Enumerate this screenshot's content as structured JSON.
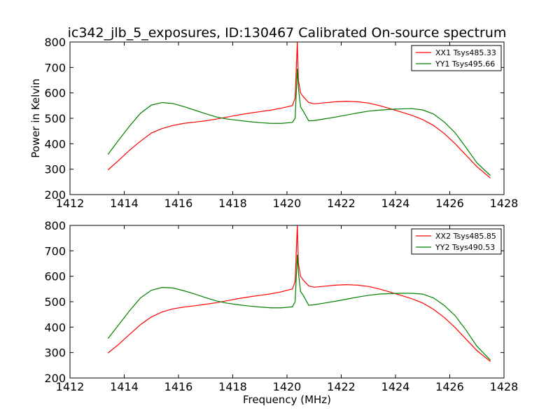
{
  "title": "ic342_jlb_5_exposures, ID:130467 Calibrated On-source spectrum",
  "chart_data": [
    {
      "type": "line",
      "xlabel": "",
      "ylabel": "Power in Kelvin",
      "xlim": [
        1412,
        1428
      ],
      "ylim": [
        200,
        800
      ],
      "xticks": [
        "1412",
        "1414",
        "1416",
        "1418",
        "1420",
        "1422",
        "1424",
        "1426",
        "1428"
      ],
      "yticks": [
        "200",
        "300",
        "400",
        "500",
        "600",
        "700",
        "800"
      ],
      "legend_position": "top-right",
      "series": [
        {
          "name": "XX1 Tsys485.33",
          "color": "#ff0000",
          "x": [
            1413.4,
            1413.8,
            1414.2,
            1414.6,
            1415.0,
            1415.4,
            1415.8,
            1416.2,
            1416.6,
            1417.0,
            1417.4,
            1417.8,
            1418.2,
            1418.6,
            1419.0,
            1419.4,
            1419.8,
            1420.0,
            1420.2,
            1420.3,
            1420.38,
            1420.42,
            1420.5,
            1420.6,
            1420.8,
            1421.0,
            1421.4,
            1421.8,
            1422.2,
            1422.6,
            1423.0,
            1423.4,
            1423.8,
            1424.2,
            1424.6,
            1425.0,
            1425.4,
            1425.8,
            1426.2,
            1426.6,
            1427.0,
            1427.5
          ],
          "y": [
            297,
            335,
            375,
            410,
            442,
            460,
            472,
            480,
            485,
            490,
            497,
            505,
            513,
            520,
            526,
            532,
            540,
            545,
            550,
            580,
            800,
            650,
            600,
            585,
            562,
            557,
            561,
            565,
            567,
            565,
            560,
            550,
            538,
            525,
            512,
            495,
            472,
            440,
            400,
            355,
            310,
            265
          ]
        },
        {
          "name": "YY1 Tsys495.66",
          "color": "#008000",
          "x": [
            1413.4,
            1413.8,
            1414.2,
            1414.6,
            1415.0,
            1415.4,
            1415.8,
            1416.2,
            1416.6,
            1417.0,
            1417.4,
            1417.8,
            1418.2,
            1418.6,
            1419.0,
            1419.4,
            1419.8,
            1420.0,
            1420.2,
            1420.3,
            1420.38,
            1420.42,
            1420.5,
            1420.6,
            1420.8,
            1421.0,
            1421.4,
            1421.8,
            1422.2,
            1422.6,
            1423.0,
            1423.4,
            1423.8,
            1424.2,
            1424.6,
            1425.0,
            1425.4,
            1425.8,
            1426.2,
            1426.6,
            1427.0,
            1427.5
          ],
          "y": [
            358,
            415,
            470,
            520,
            552,
            562,
            558,
            546,
            532,
            518,
            505,
            497,
            492,
            487,
            483,
            480,
            480,
            482,
            484,
            500,
            695,
            620,
            545,
            528,
            490,
            491,
            498,
            505,
            513,
            521,
            528,
            532,
            535,
            537,
            538,
            533,
            517,
            485,
            443,
            385,
            325,
            275
          ]
        }
      ]
    },
    {
      "type": "line",
      "xlabel": "Frequency (MHz)",
      "ylabel": "",
      "xlim": [
        1412,
        1428
      ],
      "ylim": [
        200,
        800
      ],
      "xticks": [
        "1412",
        "1414",
        "1416",
        "1418",
        "1420",
        "1422",
        "1424",
        "1426",
        "1428"
      ],
      "yticks": [
        "200",
        "300",
        "400",
        "500",
        "600",
        "700",
        "800"
      ],
      "legend_position": "top-right",
      "series": [
        {
          "name": "XX2 Tsys485.85",
          "color": "#ff0000",
          "x": [
            1413.4,
            1413.8,
            1414.2,
            1414.6,
            1415.0,
            1415.4,
            1415.8,
            1416.2,
            1416.6,
            1417.0,
            1417.4,
            1417.8,
            1418.2,
            1418.6,
            1419.0,
            1419.4,
            1419.8,
            1420.0,
            1420.2,
            1420.3,
            1420.38,
            1420.42,
            1420.5,
            1420.6,
            1420.8,
            1421.0,
            1421.4,
            1421.8,
            1422.2,
            1422.6,
            1423.0,
            1423.4,
            1423.8,
            1424.2,
            1424.6,
            1425.0,
            1425.4,
            1425.8,
            1426.2,
            1426.6,
            1427.0,
            1427.5
          ],
          "y": [
            298,
            333,
            372,
            410,
            440,
            460,
            472,
            479,
            484,
            490,
            496,
            504,
            512,
            519,
            525,
            531,
            539,
            545,
            550,
            580,
            800,
            650,
            600,
            585,
            562,
            557,
            561,
            565,
            567,
            565,
            560,
            550,
            538,
            525,
            512,
            495,
            470,
            438,
            398,
            353,
            308,
            265
          ]
        },
        {
          "name": "YY2 Tsys490.53",
          "color": "#008000",
          "x": [
            1413.4,
            1413.8,
            1414.2,
            1414.6,
            1415.0,
            1415.4,
            1415.8,
            1416.2,
            1416.6,
            1417.0,
            1417.4,
            1417.8,
            1418.2,
            1418.6,
            1419.0,
            1419.4,
            1419.8,
            1420.0,
            1420.2,
            1420.3,
            1420.38,
            1420.42,
            1420.5,
            1420.6,
            1420.8,
            1421.0,
            1421.4,
            1421.8,
            1422.2,
            1422.6,
            1423.0,
            1423.4,
            1423.8,
            1424.2,
            1424.6,
            1425.0,
            1425.4,
            1425.8,
            1426.2,
            1426.6,
            1427.0,
            1427.5
          ],
          "y": [
            355,
            410,
            465,
            515,
            545,
            556,
            554,
            543,
            530,
            516,
            503,
            494,
            488,
            483,
            479,
            476,
            476,
            478,
            480,
            500,
            685,
            615,
            540,
            525,
            486,
            488,
            495,
            502,
            510,
            518,
            525,
            530,
            532,
            533,
            533,
            530,
            515,
            485,
            445,
            388,
            325,
            270
          ]
        }
      ]
    }
  ]
}
